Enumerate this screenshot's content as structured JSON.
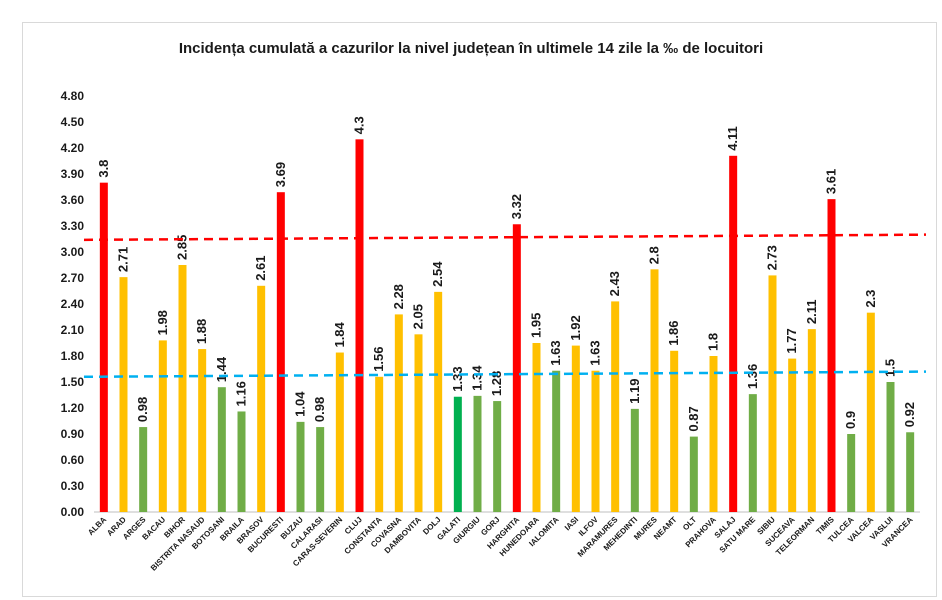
{
  "chart_data": {
    "type": "bar",
    "title": "Incidența cumulată a cazurilor la nivel județean în ultimele 14 zile la ‰ de locuitori",
    "xlabel": "",
    "ylabel": "",
    "ylim": [
      0,
      4.8
    ],
    "ytick_step": 0.3,
    "ytick_labels": [
      "0.00",
      "0.30",
      "0.60",
      "0.90",
      "1.20",
      "1.50",
      "1.80",
      "2.10",
      "2.40",
      "2.70",
      "3.00",
      "3.30",
      "3.60",
      "3.90",
      "4.20",
      "4.50",
      "4.80"
    ],
    "grid": false,
    "legend": "none",
    "categories": [
      "ALBA",
      "ARAD",
      "ARGES",
      "BACAU",
      "BIHOR",
      "BISTRITA NASAUD",
      "BOTOSANI",
      "BRAILA",
      "BRASOV",
      "BUCURESTI",
      "BUZAU",
      "CALARASI",
      "CARAS-SEVERIN",
      "CLUJ",
      "CONSTANTA",
      "COVASNA",
      "DAMBOVITA",
      "DOLJ",
      "GALATI",
      "GIURGIU",
      "GORJ",
      "HARGHITA",
      "HUNEDOARA",
      "IALOMITA",
      "IASI",
      "ILFOV",
      "MARAMURES",
      "MEHEDINTI",
      "MURES",
      "NEAMT",
      "OLT",
      "PRAHOVA",
      "SALAJ",
      "SATU MARE",
      "SIBIU",
      "SUCEAVA",
      "TELEORMAN",
      "TIMIS",
      "TULCEA",
      "VALCEA",
      "VASLUI",
      "VRANCEA"
    ],
    "values": [
      3.8,
      2.71,
      0.98,
      1.98,
      2.85,
      1.88,
      1.44,
      1.16,
      2.61,
      3.69,
      1.04,
      0.98,
      1.84,
      4.3,
      1.56,
      2.28,
      2.05,
      2.54,
      1.33,
      1.34,
      1.28,
      3.32,
      1.95,
      1.63,
      1.92,
      1.63,
      2.43,
      1.19,
      2.8,
      1.86,
      0.87,
      1.8,
      4.11,
      1.36,
      2.73,
      1.77,
      2.11,
      3.61,
      0.9,
      2.3,
      1.5,
      0.92
    ],
    "value_labels": [
      "3.8",
      "2.71",
      "0.98",
      "1.98",
      "2.85",
      "1.88",
      "1.44",
      "1.16",
      "2.61",
      "3.69",
      "1.04",
      "0.98",
      "1.84",
      "4.3",
      "1.56",
      "2.28",
      "2.05",
      "2.54",
      "1.33",
      "1.34",
      "1.28",
      "3.32",
      "1.95",
      "1.63",
      "1.92",
      "1.63",
      "2.43",
      "1.19",
      "2.8",
      "1.86",
      "0.87",
      "1.8",
      "4.11",
      "1.36",
      "2.73",
      "1.77",
      "2.11",
      "3.61",
      "0.9",
      "2.3",
      "1.5",
      "0.92"
    ],
    "bar_colors": [
      "red",
      "yellow",
      "green",
      "yellow",
      "yellow",
      "yellow",
      "green",
      "green",
      "yellow",
      "red",
      "green",
      "green",
      "yellow",
      "red",
      "yellow",
      "yellow",
      "yellow",
      "yellow",
      "brightgreen",
      "green",
      "green",
      "red",
      "yellow",
      "green",
      "yellow",
      "yellow",
      "yellow",
      "green",
      "yellow",
      "yellow",
      "green",
      "yellow",
      "red",
      "green",
      "yellow",
      "yellow",
      "yellow",
      "red",
      "green",
      "yellow",
      "green",
      "green"
    ],
    "palette": {
      "red": "#ff0000",
      "yellow": "#ffc000",
      "green": "#70ad47",
      "brightgreen": "#00b050",
      "ref_high": "#ff0000",
      "ref_low": "#00b0f0"
    },
    "reference_lines": [
      {
        "style": "dashed",
        "color_key": "ref_high",
        "y_start": 3.14,
        "y_end": 3.2
      },
      {
        "style": "dashed",
        "color_key": "ref_low",
        "y_start": 1.56,
        "y_end": 1.62
      }
    ]
  }
}
